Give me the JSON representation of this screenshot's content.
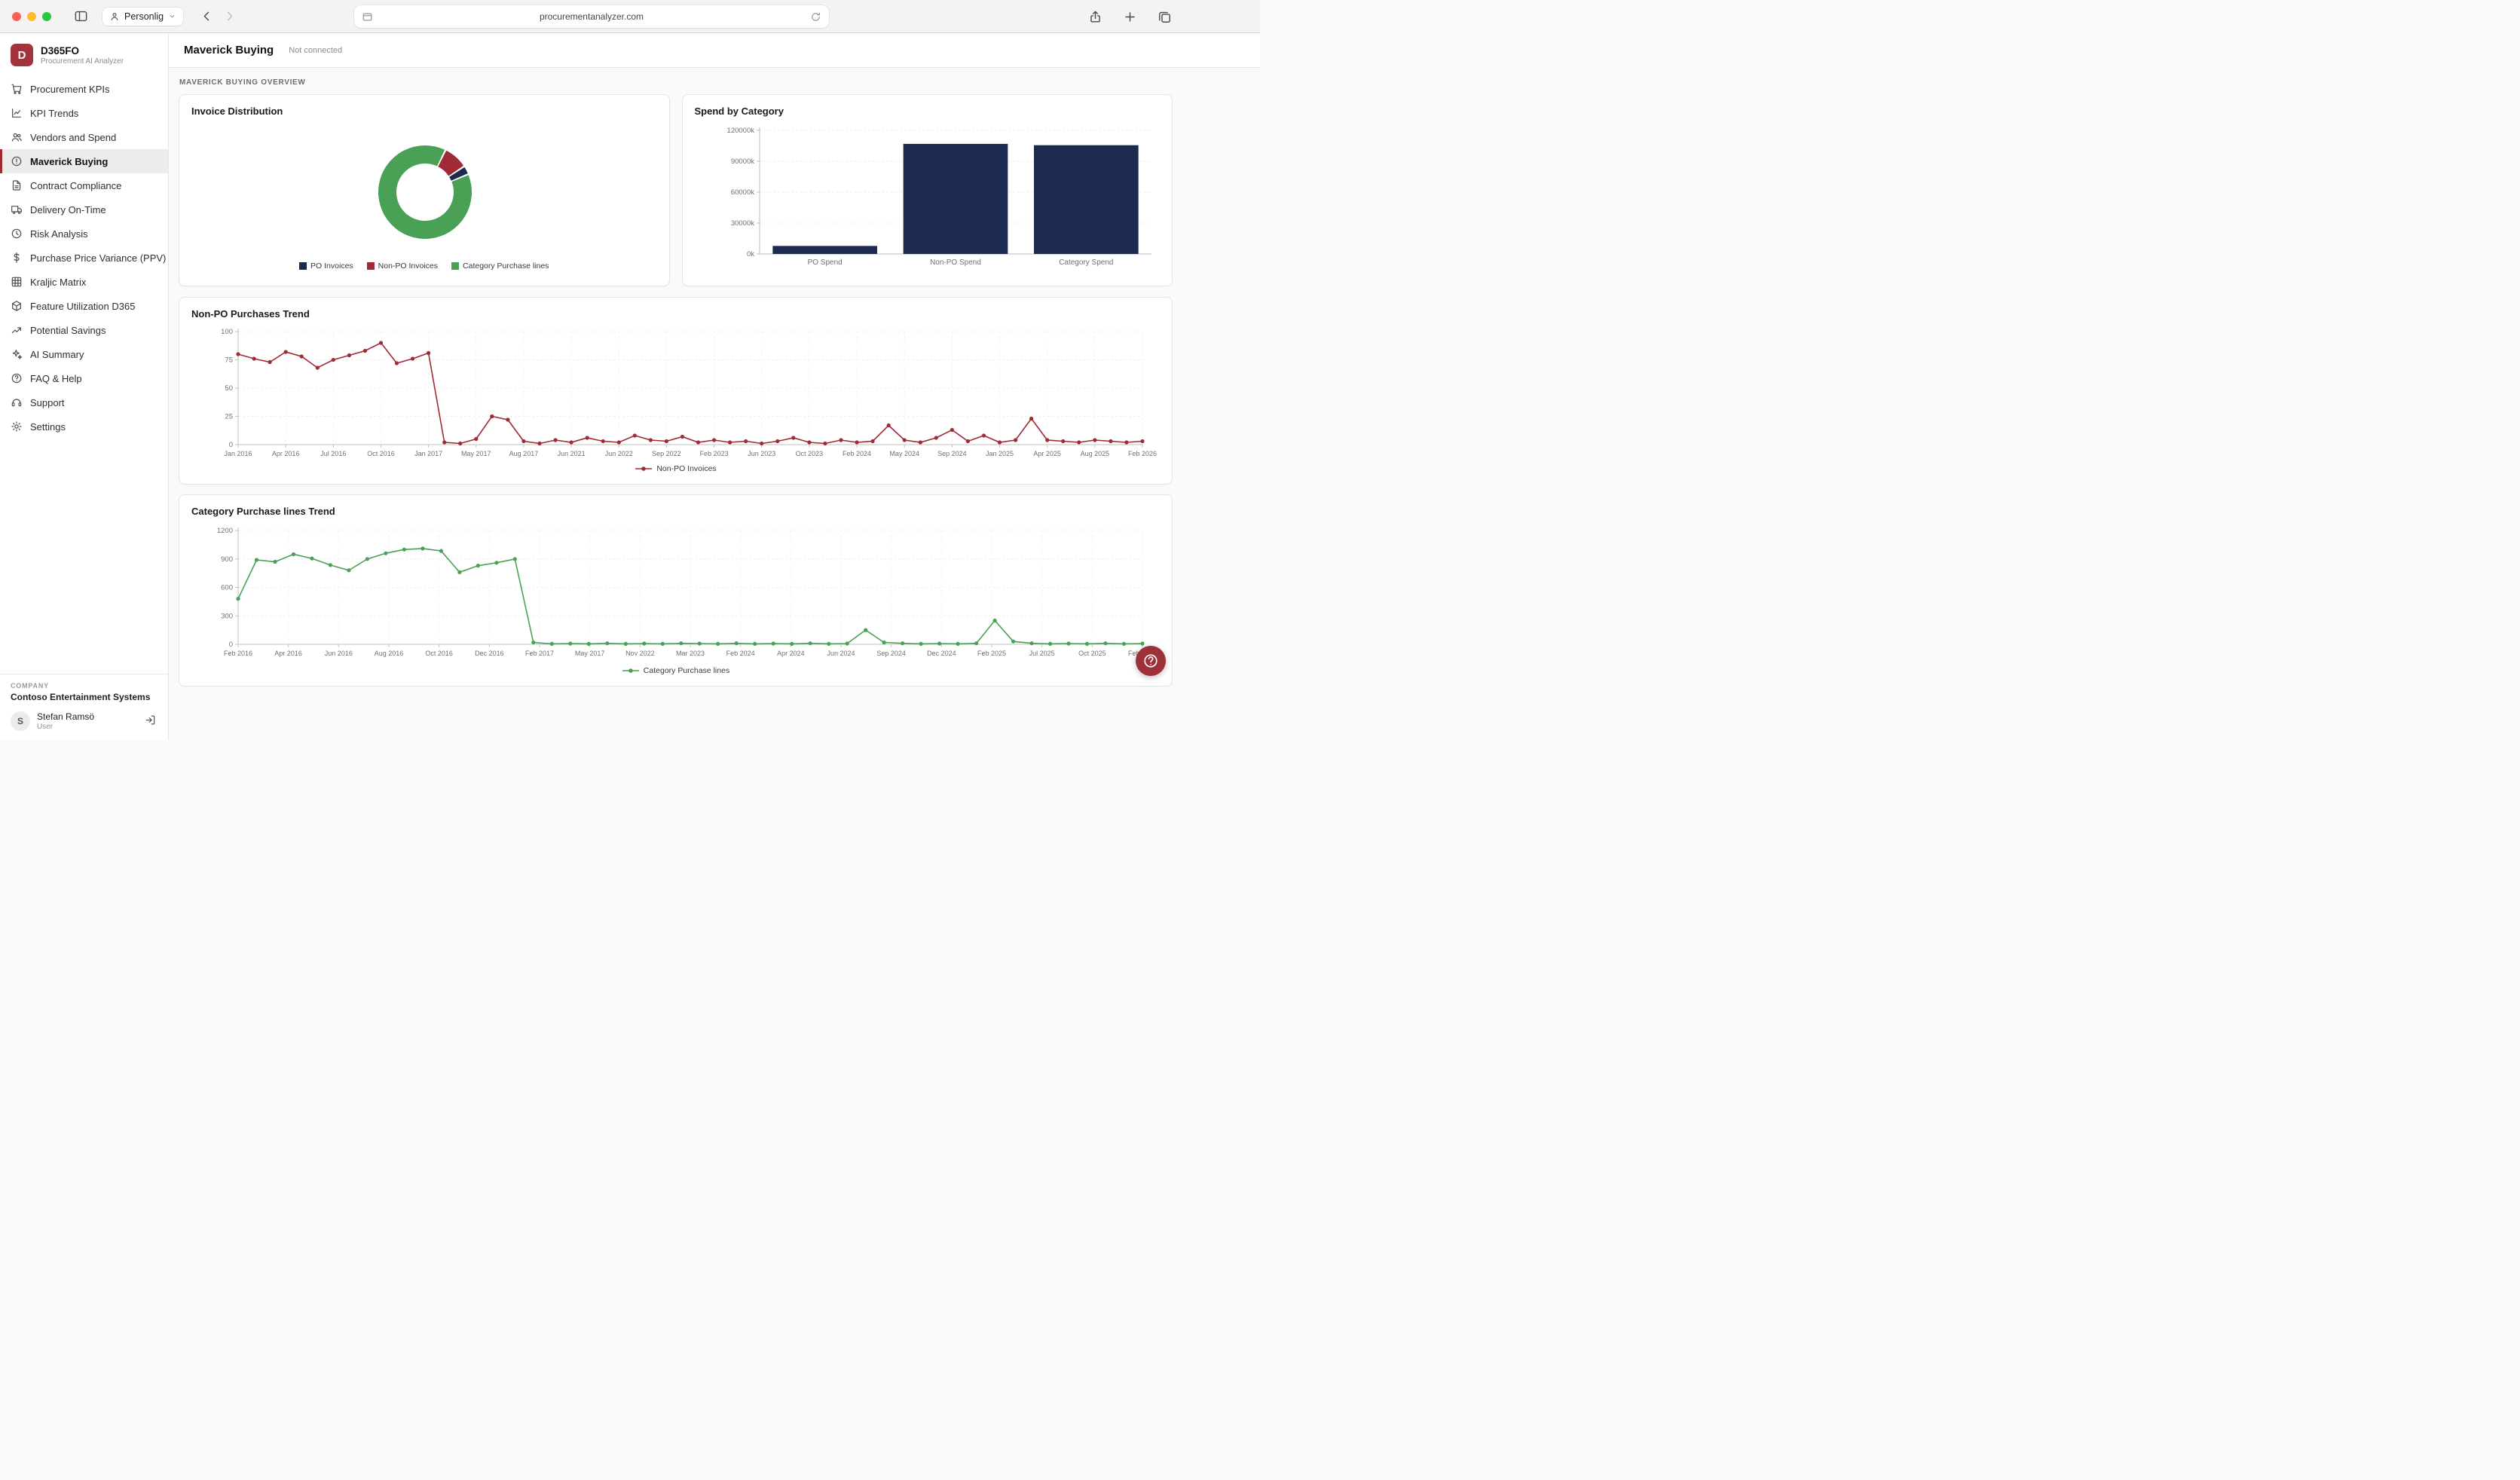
{
  "browser": {
    "profile": "Personlig",
    "url": "procurementanalyzer.com"
  },
  "sidebar": {
    "logo_letter": "D",
    "app_name": "D365FO",
    "app_subtitle": "Procurement AI Analyzer",
    "items": [
      {
        "label": "Procurement KPIs",
        "icon": "cart",
        "active": false
      },
      {
        "label": "KPI Trends",
        "icon": "line-chart",
        "active": false
      },
      {
        "label": "Vendors and Spend",
        "icon": "users",
        "active": false
      },
      {
        "label": "Maverick Buying",
        "icon": "alert",
        "active": true
      },
      {
        "label": "Contract Compliance",
        "icon": "document",
        "active": false
      },
      {
        "label": "Delivery On-Time",
        "icon": "truck",
        "active": false
      },
      {
        "label": "Risk Analysis",
        "icon": "clock",
        "active": false
      },
      {
        "label": "Purchase Price Variance (PPV)",
        "icon": "dollar",
        "active": false
      },
      {
        "label": "Kraljic Matrix",
        "icon": "grid",
        "active": false
      },
      {
        "label": "Feature Utilization D365",
        "icon": "feature",
        "active": false
      },
      {
        "label": "Potential Savings",
        "icon": "trend-up",
        "active": false
      },
      {
        "label": "AI Summary",
        "icon": "sparkles",
        "active": false
      },
      {
        "label": "FAQ & Help",
        "icon": "help",
        "active": false
      },
      {
        "label": "Support",
        "icon": "headset",
        "active": false
      },
      {
        "label": "Settings",
        "icon": "gear",
        "active": false
      }
    ],
    "company_label": "COMPANY",
    "company_name": "Contoso Entertainment Systems",
    "user": {
      "initial": "S",
      "name": "Stefan Ramsö",
      "role": "User"
    }
  },
  "header": {
    "title": "Maverick Buying",
    "status": "Not connected"
  },
  "section_title": "MAVERICK BUYING OVERVIEW",
  "colors": {
    "navy": "#1b2a4e",
    "red": "#9e2b35",
    "green": "#4aa155"
  },
  "chart_data": [
    {
      "type": "pie",
      "title": "Invoice Distribution",
      "start_angle": 26,
      "draw_order": [
        1,
        0,
        2
      ],
      "segments": [
        {
          "label": "PO Invoices",
          "value": 3,
          "color": "#1b2a4e"
        },
        {
          "label": "Non-PO Invoices",
          "value": 8.5,
          "color": "#9e2b35"
        },
        {
          "label": "Category Purchase lines",
          "value": 88.5,
          "color": "#4aa155"
        }
      ],
      "legend_position": "bottom"
    },
    {
      "type": "bar",
      "title": "Spend by Category",
      "categories": [
        "PO Spend",
        "Non-PO Spend",
        "Category Spend"
      ],
      "values": [
        7800,
        106900,
        105600
      ],
      "unit": "k",
      "color": "#1b2a4e",
      "ylim": [
        0,
        120000
      ],
      "ytick_values": [
        0,
        30000,
        60000,
        90000,
        120000
      ],
      "ytick_labels": [
        "0k",
        "30000k",
        "60000k",
        "90000k",
        "120000k"
      ],
      "grid": true
    },
    {
      "type": "line",
      "title": "Non-PO Purchases Trend",
      "series_name": "Non-PO Invoices",
      "color": "#9e2b35",
      "ylim": [
        0,
        100
      ],
      "ytick_values": [
        0,
        25,
        50,
        75,
        100
      ],
      "x_tick_labels": [
        "Jan 2016",
        "Apr 2016",
        "Jul 2016",
        "Oct 2016",
        "Jan 2017",
        "May 2017",
        "Aug 2017",
        "Jun 2021",
        "Jun 2022",
        "Sep 2022",
        "Feb 2023",
        "Jun 2023",
        "Oct 2023",
        "Feb 2024",
        "May 2024",
        "Sep 2024",
        "Jan 2025",
        "Apr 2025",
        "Aug 2025",
        "Feb 2026"
      ],
      "values": [
        80,
        76,
        73,
        82,
        78,
        68,
        75,
        79,
        83,
        90,
        72,
        76,
        81,
        2,
        1,
        5,
        25,
        22,
        3,
        1,
        4,
        2,
        6,
        3,
        2,
        8,
        4,
        3,
        7,
        2,
        4,
        2,
        3,
        1,
        3,
        6,
        2,
        1,
        4,
        2,
        3,
        17,
        4,
        2,
        6,
        13,
        3,
        8,
        2,
        4,
        23,
        4,
        3,
        2,
        4,
        3,
        2,
        3
      ],
      "grid": true,
      "legend_position": "bottom"
    },
    {
      "type": "line",
      "title": "Category Purchase lines Trend",
      "series_name": "Category Purchase lines",
      "color": "#4aa155",
      "ylim": [
        0,
        1200
      ],
      "ytick_values": [
        0,
        300,
        600,
        900,
        1200
      ],
      "x_tick_labels": [
        "Feb 2016",
        "Apr 2016",
        "Jun 2016",
        "Aug 2016",
        "Oct 2016",
        "Dec 2016",
        "Feb 2017",
        "May 2017",
        "Nov 2022",
        "Mar 2023",
        "Feb 2024",
        "Apr 2024",
        "Jun 2024",
        "Sep 2024",
        "Dec 2024",
        "Feb 2025",
        "Jul 2025",
        "Oct 2025",
        "Feb 2026"
      ],
      "values": [
        480,
        890,
        870,
        950,
        905,
        835,
        780,
        900,
        960,
        1000,
        1010,
        985,
        760,
        830,
        860,
        900,
        20,
        5,
        8,
        5,
        10,
        5,
        8,
        5,
        10,
        8,
        5,
        10,
        5,
        8,
        5,
        10,
        5,
        8,
        150,
        20,
        10,
        5,
        8,
        5,
        10,
        250,
        30,
        10,
        5,
        8,
        5,
        10,
        5,
        8
      ],
      "grid": true,
      "legend_position": "bottom"
    }
  ]
}
